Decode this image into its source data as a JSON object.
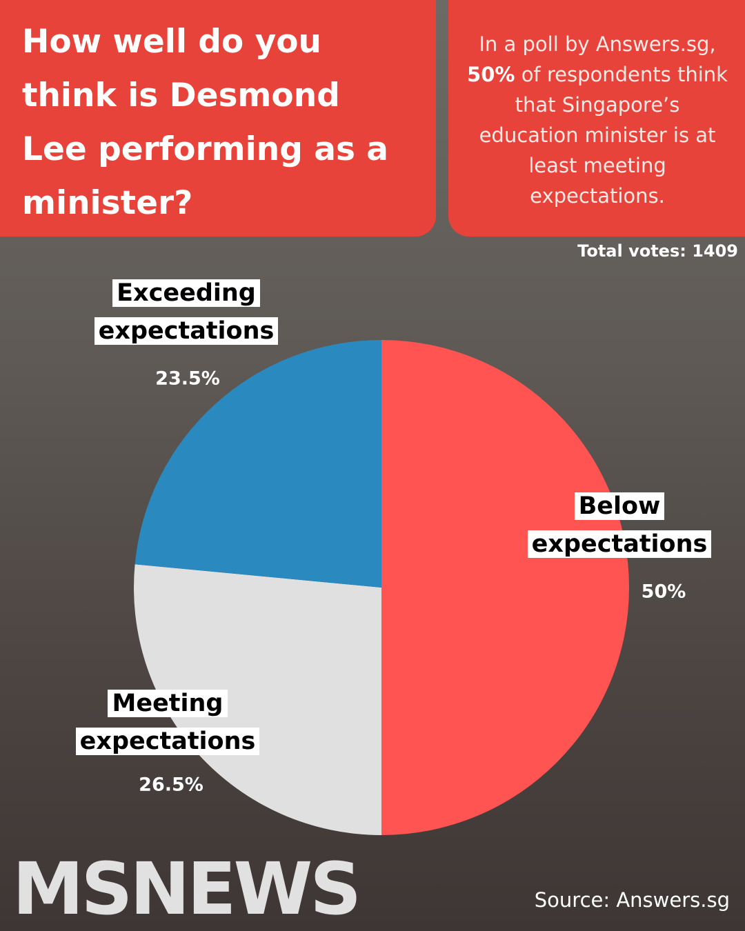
{
  "chart_data": {
    "type": "pie",
    "title": "How well do you think is Desmond Lee performing as a minister?",
    "subtitle": [
      "In a poll by Answers.sg,",
      "50%",
      "of respondents think that Singapore’s education minister is at least meeting expectations."
    ],
    "total_votes": "Total votes: 1409",
    "categories": [
      "Below expectations",
      "Meeting expectations",
      "Exceeding expectations"
    ],
    "values": [
      50,
      26.5,
      23.5
    ],
    "value_labels": [
      "50%",
      "26.5%",
      "23.5%"
    ],
    "colors": [
      "#ff5452",
      "#e0e0e0",
      "#2a8abf"
    ],
    "source": "Source: Answers.sg",
    "logo": "MSNEWS"
  }
}
